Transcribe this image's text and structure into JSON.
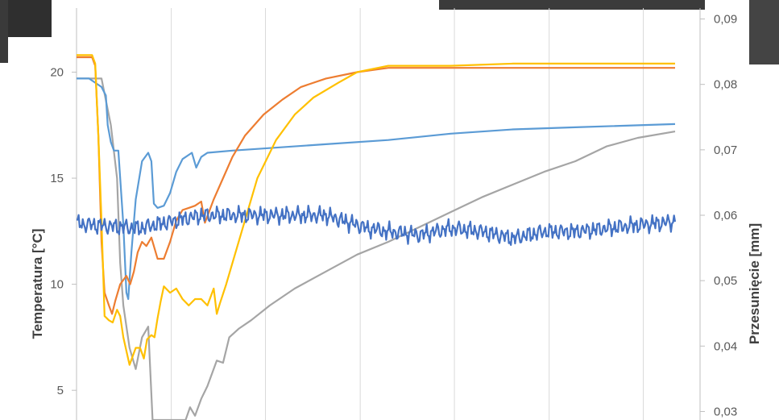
{
  "chart_data": {
    "type": "line",
    "title": "",
    "ylabel": "Temperatura [°C]",
    "y2label": "Przesunięcie [mm]",
    "ylim": [
      3.6,
      23.4
    ],
    "y2lim": [
      0.0287,
      0.0929
    ],
    "yticks": [
      {
        "value": 5,
        "label": "5"
      },
      {
        "value": 10,
        "label": "10"
      },
      {
        "value": 15,
        "label": "15"
      },
      {
        "value": 20,
        "label": "20"
      }
    ],
    "y2ticks": [
      {
        "value": 0.03,
        "label": "0,03"
      },
      {
        "value": 0.04,
        "label": "0,04"
      },
      {
        "value": 0.05,
        "label": "0,05"
      },
      {
        "value": 0.06,
        "label": "0,06"
      },
      {
        "value": 0.07,
        "label": "0,07"
      },
      {
        "value": 0.08,
        "label": "0,08"
      },
      {
        "value": 0.09,
        "label": "0,09"
      }
    ],
    "xlim": [
      0,
      100
    ],
    "xgrid": [
      0,
      15.2,
      30.3,
      45.5,
      60.6,
      75.8,
      90.9
    ],
    "grid": true,
    "legend": "none",
    "series": [
      {
        "color": "#A5A5A5",
        "axis": "left",
        "points": [
          [
            0,
            19.7
          ],
          [
            4,
            19.7
          ],
          [
            5.5,
            17.5
          ],
          [
            6.5,
            15
          ],
          [
            7,
            11
          ],
          [
            7.5,
            9
          ],
          [
            8.5,
            7
          ],
          [
            9.5,
            6
          ],
          [
            10.5,
            7.5
          ],
          [
            11.5,
            8
          ],
          [
            12.2,
            3.6
          ],
          [
            17.5,
            3.6
          ],
          [
            18.2,
            4.2
          ],
          [
            19,
            3.8
          ],
          [
            20,
            4.6
          ],
          [
            21,
            5.2
          ],
          [
            22.5,
            6.4
          ],
          [
            23.5,
            6.3
          ],
          [
            24.5,
            7.5
          ],
          [
            26,
            7.9
          ],
          [
            28,
            8.3
          ],
          [
            31,
            9
          ],
          [
            35,
            9.8
          ],
          [
            40,
            10.6
          ],
          [
            45,
            11.4
          ],
          [
            50,
            12
          ],
          [
            55,
            12.7
          ],
          [
            60,
            13.4
          ],
          [
            65,
            14.1
          ],
          [
            70,
            14.7
          ],
          [
            75,
            15.3
          ],
          [
            80,
            15.8
          ],
          [
            85,
            16.5
          ],
          [
            90,
            16.9
          ],
          [
            96,
            17.2
          ]
        ]
      },
      {
        "color": "#5B9BD5",
        "axis": "left",
        "points": [
          [
            0,
            19.7
          ],
          [
            2,
            19.7
          ],
          [
            4,
            19.3
          ],
          [
            4.7,
            18.9
          ],
          [
            5,
            17.5
          ],
          [
            5.5,
            16.7
          ],
          [
            6,
            16.3
          ],
          [
            6.7,
            16.3
          ],
          [
            7,
            15
          ],
          [
            7.5,
            12.8
          ],
          [
            8,
            9.6
          ],
          [
            8.3,
            9.3
          ],
          [
            8.8,
            11.5
          ],
          [
            9.5,
            14
          ],
          [
            10.5,
            15.8
          ],
          [
            11.5,
            16.2
          ],
          [
            12,
            15.8
          ],
          [
            12.4,
            13.8
          ],
          [
            13,
            13.6
          ],
          [
            14,
            13.7
          ],
          [
            15,
            14.3
          ],
          [
            16,
            15.3
          ],
          [
            17,
            15.9
          ],
          [
            18.5,
            16.2
          ],
          [
            19.2,
            15.5
          ],
          [
            20,
            16
          ],
          [
            21,
            16.2
          ],
          [
            25,
            16.3
          ],
          [
            30,
            16.4
          ],
          [
            40,
            16.6
          ],
          [
            50,
            16.8
          ],
          [
            60,
            17.1
          ],
          [
            70,
            17.3
          ],
          [
            80,
            17.4
          ],
          [
            96,
            17.55
          ]
        ]
      },
      {
        "color": "#ED7D31",
        "axis": "left",
        "points": [
          [
            0,
            20.7
          ],
          [
            2.5,
            20.7
          ],
          [
            3,
            20.3
          ],
          [
            3.5,
            17
          ],
          [
            4,
            12
          ],
          [
            4.5,
            9.6
          ],
          [
            5.2,
            9
          ],
          [
            5.7,
            8.6
          ],
          [
            6.2,
            9.2
          ],
          [
            7,
            10
          ],
          [
            8,
            10.4
          ],
          [
            8.6,
            10
          ],
          [
            9.2,
            10.6
          ],
          [
            9.8,
            11.5
          ],
          [
            10.5,
            12
          ],
          [
            11.2,
            11.8
          ],
          [
            12,
            12.2
          ],
          [
            13,
            11.2
          ],
          [
            14,
            11.2
          ],
          [
            15,
            12
          ],
          [
            16,
            13
          ],
          [
            17,
            13.5
          ],
          [
            18,
            13.6
          ],
          [
            19,
            13.7
          ],
          [
            20,
            13.9
          ],
          [
            20.6,
            12.9
          ],
          [
            22,
            14
          ],
          [
            23.5,
            15
          ],
          [
            25,
            16
          ],
          [
            27,
            17
          ],
          [
            30,
            18
          ],
          [
            33,
            18.7
          ],
          [
            36,
            19.3
          ],
          [
            40,
            19.7
          ],
          [
            45,
            20
          ],
          [
            50,
            20.2
          ],
          [
            60,
            20.2
          ],
          [
            70,
            20.2
          ],
          [
            80,
            20.2
          ],
          [
            90,
            20.2
          ],
          [
            96,
            20.2
          ]
        ]
      },
      {
        "color": "#FFC000",
        "axis": "left",
        "points": [
          [
            0,
            20.8
          ],
          [
            2.5,
            20.8
          ],
          [
            3,
            20.4
          ],
          [
            3.5,
            17
          ],
          [
            4,
            13
          ],
          [
            4.5,
            8.5
          ],
          [
            5.2,
            8.3
          ],
          [
            5.8,
            8.2
          ],
          [
            6.5,
            8.8
          ],
          [
            7,
            8.5
          ],
          [
            7.5,
            7.5
          ],
          [
            8.5,
            6.2
          ],
          [
            9.5,
            7
          ],
          [
            10.2,
            7
          ],
          [
            10.8,
            6.5
          ],
          [
            11.3,
            7.4
          ],
          [
            12,
            7.6
          ],
          [
            12.5,
            7.5
          ],
          [
            13,
            8.4
          ],
          [
            13.5,
            9.2
          ],
          [
            14,
            9.9
          ],
          [
            15,
            9.6
          ],
          [
            16,
            9.8
          ],
          [
            17,
            9.3
          ],
          [
            18,
            9
          ],
          [
            19,
            9.3
          ],
          [
            20,
            9.3
          ],
          [
            21,
            9
          ],
          [
            22,
            9.8
          ],
          [
            22.5,
            8.6
          ],
          [
            23,
            9.1
          ],
          [
            24,
            10
          ],
          [
            25,
            11
          ],
          [
            27,
            13
          ],
          [
            29,
            15
          ],
          [
            32,
            16.8
          ],
          [
            35,
            18
          ],
          [
            38,
            18.8
          ],
          [
            42,
            19.5
          ],
          [
            45,
            20
          ],
          [
            50,
            20.3
          ],
          [
            60,
            20.3
          ],
          [
            70,
            20.4
          ],
          [
            80,
            20.4
          ],
          [
            90,
            20.4
          ],
          [
            96,
            20.4
          ]
        ]
      },
      {
        "color": "#4472C4",
        "axis": "right",
        "noise": 0.0015,
        "points": [
          [
            0,
            0.0587
          ],
          [
            10,
            0.058
          ],
          [
            20,
            0.06
          ],
          [
            30,
            0.06
          ],
          [
            40,
            0.06
          ],
          [
            46.7,
            0.058
          ],
          [
            50,
            0.0575
          ],
          [
            55,
            0.057
          ],
          [
            60,
            0.058
          ],
          [
            65,
            0.0575
          ],
          [
            70,
            0.0565
          ],
          [
            75,
            0.0575
          ],
          [
            80,
            0.0575
          ],
          [
            85,
            0.058
          ],
          [
            90,
            0.0585
          ],
          [
            96,
            0.059
          ]
        ]
      }
    ]
  }
}
